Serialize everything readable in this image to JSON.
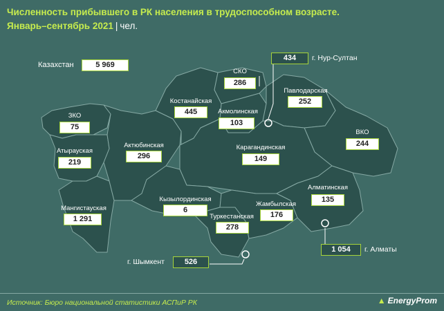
{
  "title": {
    "line1": "Численность прибывшего в РК населения в трудоспособном возрасте.",
    "line2": "Январь–сентябрь 2021",
    "separator": "|",
    "unit": "чел."
  },
  "country": {
    "label": "Казахстан",
    "value": "5 969"
  },
  "regions": [
    {
      "name": "ЗКО",
      "value": "75"
    },
    {
      "name": "Атырауская",
      "value": "219"
    },
    {
      "name": "Мангистауская",
      "value": "1 291"
    },
    {
      "name": "Актюбинская",
      "value": "296"
    },
    {
      "name": "Костанайская",
      "value": "445"
    },
    {
      "name": "СКО",
      "value": "286"
    },
    {
      "name": "Акмолинская",
      "value": "103"
    },
    {
      "name": "Павлодарская",
      "value": "252"
    },
    {
      "name": "ВКО",
      "value": "244"
    },
    {
      "name": "Карагандинская",
      "value": "149"
    },
    {
      "name": "Кызылординская",
      "value": "6"
    },
    {
      "name": "Туркестанская",
      "value": "278"
    },
    {
      "name": "Жамбылская",
      "value": "176"
    },
    {
      "name": "Алматинская",
      "value": "135"
    }
  ],
  "cities": [
    {
      "name": "г. Нур-Султан",
      "value": "434"
    },
    {
      "name": "г. Алматы",
      "value": "1 054"
    },
    {
      "name": "г. Шымкент",
      "value": "526"
    }
  ],
  "colors": {
    "background": "#3f6b66",
    "region_fill": "#2c514d",
    "accent": "#a7d53a",
    "title": "#c6ec4e"
  },
  "footer": {
    "source": "Источник: Бюро национальной статистики АСПиР РК",
    "logo": "EnergyProm",
    "logo_icon": "energyprom-logo-icon"
  }
}
